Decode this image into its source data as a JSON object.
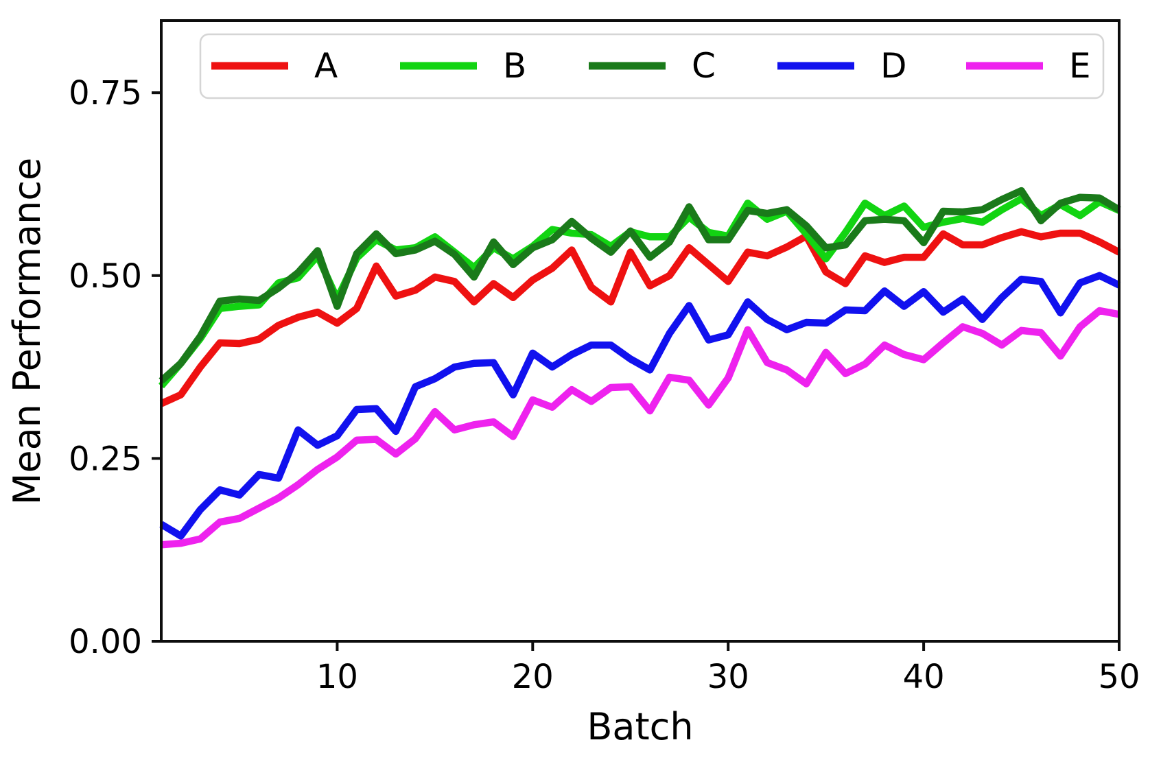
{
  "figure": {
    "background": "#ffffff",
    "plot_background": "#ffffff",
    "spine_color": "#0d0d0d"
  },
  "chart_data": {
    "type": "line",
    "title": "",
    "xlabel": "Batch",
    "ylabel": "Mean Performance",
    "xlim": [
      1,
      50
    ],
    "ylim": [
      0.0,
      0.85
    ],
    "grid": false,
    "legend": {
      "position": "upper center",
      "orientation": "horizontal",
      "frame": true
    },
    "xticks": {
      "values": [
        10,
        20,
        30,
        40,
        50
      ],
      "labels": [
        "10",
        "20",
        "30",
        "40",
        "50"
      ]
    },
    "yticks": {
      "values": [
        0.0,
        0.25,
        0.5,
        0.75
      ],
      "labels": [
        "0.00",
        "0.25",
        "0.50",
        "0.75"
      ]
    },
    "x": [
      1,
      2,
      3,
      4,
      5,
      6,
      7,
      8,
      9,
      10,
      11,
      12,
      13,
      14,
      15,
      16,
      17,
      18,
      19,
      20,
      21,
      22,
      23,
      24,
      25,
      26,
      27,
      28,
      29,
      30,
      31,
      32,
      33,
      34,
      35,
      36,
      37,
      38,
      39,
      40,
      41,
      42,
      43,
      44,
      45,
      46,
      47,
      48,
      49,
      50
    ],
    "series": [
      {
        "name": "A",
        "color": "#ee1111",
        "values": [
          0.325,
          0.337,
          0.375,
          0.408,
          0.407,
          0.413,
          0.432,
          0.443,
          0.45,
          0.435,
          0.455,
          0.513,
          0.472,
          0.48,
          0.498,
          0.492,
          0.464,
          0.489,
          0.47,
          0.494,
          0.51,
          0.535,
          0.484,
          0.464,
          0.532,
          0.486,
          0.5,
          0.538,
          0.515,
          0.492,
          0.532,
          0.527,
          0.539,
          0.554,
          0.505,
          0.489,
          0.527,
          0.518,
          0.525,
          0.525,
          0.557,
          0.542,
          0.542,
          0.552,
          0.56,
          0.553,
          0.558,
          0.558,
          0.546,
          0.532
        ]
      },
      {
        "name": "B",
        "color": "#12d412",
        "values": [
          0.349,
          0.38,
          0.414,
          0.455,
          0.458,
          0.46,
          0.49,
          0.497,
          0.527,
          0.468,
          0.524,
          0.549,
          0.535,
          0.538,
          0.553,
          0.532,
          0.511,
          0.538,
          0.523,
          0.54,
          0.563,
          0.558,
          0.556,
          0.54,
          0.56,
          0.553,
          0.553,
          0.58,
          0.559,
          0.554,
          0.599,
          0.577,
          0.588,
          0.557,
          0.523,
          0.559,
          0.599,
          0.582,
          0.595,
          0.566,
          0.573,
          0.578,
          0.573,
          0.59,
          0.605,
          0.582,
          0.597,
          0.582,
          0.601,
          0.589
        ]
      },
      {
        "name": "C",
        "color": "#1a7a1a",
        "values": [
          0.356,
          0.38,
          0.417,
          0.465,
          0.468,
          0.466,
          0.483,
          0.504,
          0.534,
          0.458,
          0.53,
          0.557,
          0.53,
          0.535,
          0.547,
          0.529,
          0.498,
          0.546,
          0.515,
          0.538,
          0.549,
          0.574,
          0.551,
          0.532,
          0.561,
          0.525,
          0.546,
          0.594,
          0.549,
          0.549,
          0.589,
          0.585,
          0.59,
          0.568,
          0.538,
          0.542,
          0.575,
          0.577,
          0.575,
          0.545,
          0.588,
          0.587,
          0.59,
          0.604,
          0.616,
          0.575,
          0.599,
          0.607,
          0.606,
          0.59
        ]
      },
      {
        "name": "D",
        "color": "#1111ee",
        "values": [
          0.16,
          0.144,
          0.18,
          0.207,
          0.2,
          0.228,
          0.223,
          0.289,
          0.268,
          0.281,
          0.317,
          0.318,
          0.287,
          0.348,
          0.359,
          0.375,
          0.38,
          0.381,
          0.337,
          0.394,
          0.375,
          0.392,
          0.405,
          0.405,
          0.386,
          0.371,
          0.421,
          0.459,
          0.412,
          0.419,
          0.464,
          0.44,
          0.426,
          0.436,
          0.435,
          0.453,
          0.452,
          0.479,
          0.458,
          0.478,
          0.45,
          0.468,
          0.44,
          0.47,
          0.495,
          0.492,
          0.449,
          0.49,
          0.5,
          0.487
        ]
      },
      {
        "name": "E",
        "color": "#ee22ee",
        "values": [
          0.132,
          0.134,
          0.14,
          0.163,
          0.168,
          0.182,
          0.196,
          0.214,
          0.235,
          0.252,
          0.275,
          0.276,
          0.256,
          0.277,
          0.314,
          0.289,
          0.296,
          0.3,
          0.28,
          0.33,
          0.32,
          0.344,
          0.328,
          0.347,
          0.348,
          0.315,
          0.361,
          0.357,
          0.323,
          0.36,
          0.426,
          0.381,
          0.371,
          0.352,
          0.395,
          0.366,
          0.379,
          0.405,
          0.392,
          0.385,
          0.408,
          0.43,
          0.421,
          0.405,
          0.425,
          0.422,
          0.39,
          0.43,
          0.452,
          0.447
        ]
      }
    ]
  }
}
